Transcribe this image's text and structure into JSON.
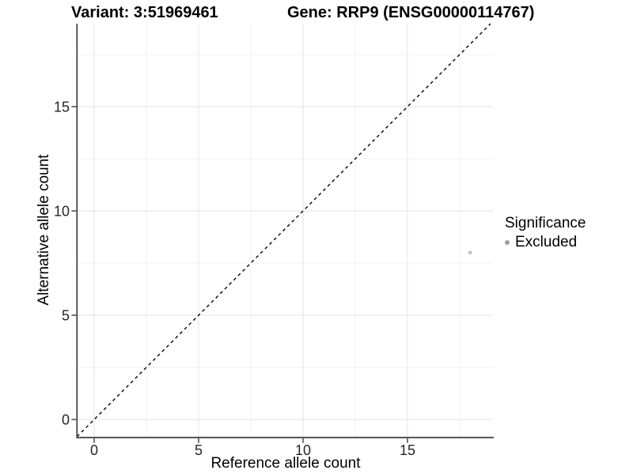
{
  "page": {
    "background": "#ffffff"
  },
  "chart_data": {
    "type": "scatter",
    "titles": [
      "Variant: 3:51969461",
      "Gene: RRP9 (ENSG00000114767)"
    ],
    "xlabel": "Reference allele count",
    "ylabel": "Alternative allele count",
    "x_ticks": [
      0,
      5,
      10,
      15
    ],
    "y_ticks": [
      0,
      5,
      10,
      15
    ],
    "x_minor_ticks": [
      2.5,
      7.5,
      12.5,
      17.5
    ],
    "y_minor_ticks": [
      2.5,
      7.5,
      12.5,
      17.5
    ],
    "xlim": [
      -0.85,
      19.1
    ],
    "ylim": [
      -0.85,
      19.0
    ],
    "grid": "major+minor",
    "axis_lines": "left and bottom only",
    "panel_background": "#ffffff",
    "reference_line": {
      "kind": "identity",
      "equation": "y = x",
      "style": "dashed",
      "color": "#000000"
    },
    "series": [
      {
        "name": "Excluded",
        "marker": "circle",
        "color": "#bdbdbd",
        "points": [
          {
            "x": 18,
            "y": 8
          }
        ]
      }
    ],
    "legend": {
      "title": "Significance",
      "position": "right",
      "items": [
        {
          "label": "Excluded",
          "color": "#9e9e9e"
        }
      ]
    }
  },
  "style": {
    "grid_major_color": "#e3e3e3",
    "grid_minor_color": "#f1f1f1",
    "axis_line_color": "#474747",
    "tick_label_color": "#262626",
    "point_radius": 2.3
  }
}
